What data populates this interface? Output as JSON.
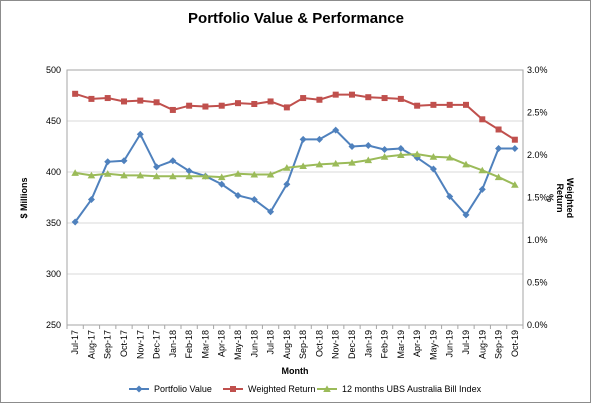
{
  "chart_data": {
    "type": "line",
    "title": "Portfolio Value & Performance",
    "xlabel": "Month",
    "ylabel": "$ Millions",
    "y2label_lines": [
      "Weighted",
      "Return",
      "%"
    ],
    "ylim": [
      250,
      500
    ],
    "yticks": [
      250,
      300,
      350,
      400,
      450,
      500
    ],
    "y2lim": [
      0.0,
      3.0
    ],
    "y2ticks": [
      "0.0%",
      "0.5%",
      "1.0%",
      "1.5%",
      "2.0%",
      "2.5%",
      "3.0%"
    ],
    "grid": "horizontal",
    "legend_position": "bottom",
    "categories": [
      "Jul-17",
      "Aug-17",
      "Sep-17",
      "Oct-17",
      "Nov-17",
      "Dec-17",
      "Jan-18",
      "Feb-18",
      "Mar-18",
      "Apr-18",
      "May-18",
      "Jun-18",
      "Jul-18",
      "Aug-18",
      "Sep-18",
      "Oct-18",
      "Nov-18",
      "Dec-18",
      "Jan-19",
      "Feb-19",
      "Mar-19",
      "Apr-19",
      "May-19",
      "Jun-19",
      "Jul-19",
      "Aug-19",
      "Sep-19",
      "Oct-19"
    ],
    "series": [
      {
        "name": "Portfolio Value",
        "axis": "left",
        "color": "#4f81bd",
        "marker": "diamond",
        "values": [
          351,
          373,
          410,
          411,
          437,
          405,
          411,
          401,
          396,
          388,
          377,
          373,
          361,
          388,
          432,
          432,
          441,
          425,
          426,
          422,
          423,
          414,
          403,
          376,
          358,
          383,
          423,
          423
        ]
      },
      {
        "name": "Weighted Return",
        "axis": "right",
        "color": "#c0504d",
        "marker": "square",
        "values": [
          2.72,
          2.66,
          2.67,
          2.63,
          2.64,
          2.62,
          2.53,
          2.58,
          2.57,
          2.58,
          2.61,
          2.6,
          2.63,
          2.56,
          2.67,
          2.65,
          2.71,
          2.71,
          2.68,
          2.67,
          2.66,
          2.58,
          2.59,
          2.59,
          2.59,
          2.42,
          2.3,
          2.18
        ]
      },
      {
        "name": "12 months UBS Australia Bill Index",
        "axis": "right",
        "color": "#9bbb59",
        "marker": "triangle",
        "values": [
          1.79,
          1.76,
          1.78,
          1.76,
          1.76,
          1.75,
          1.75,
          1.75,
          1.75,
          1.74,
          1.78,
          1.77,
          1.77,
          1.85,
          1.87,
          1.89,
          1.9,
          1.91,
          1.94,
          1.98,
          2.0,
          2.01,
          1.98,
          1.97,
          1.89,
          1.82,
          1.74,
          1.65
        ]
      }
    ]
  }
}
